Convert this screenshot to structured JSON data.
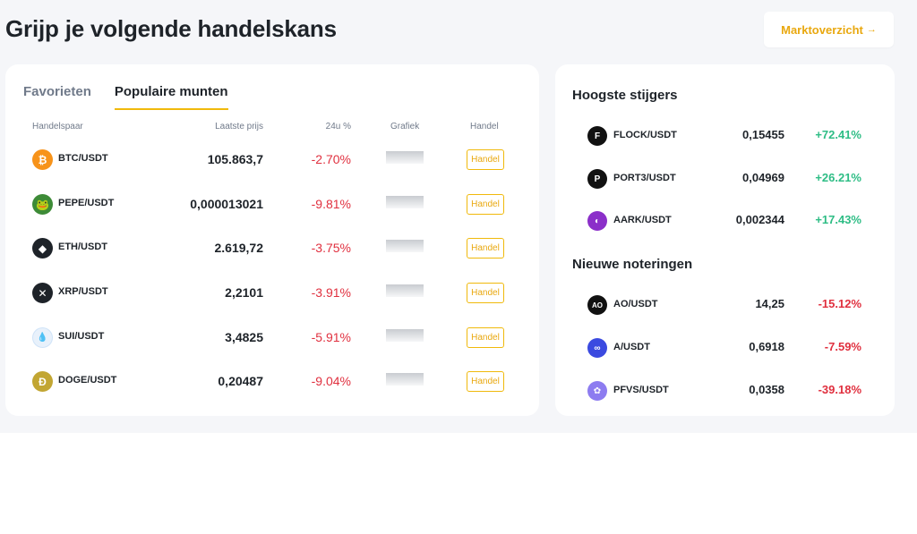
{
  "header": {
    "title": "Grijp je volgende handelskans",
    "market_button": "Marktoverzicht",
    "market_arrow": "→"
  },
  "tabs": [
    {
      "label": "Favorieten",
      "active": false
    },
    {
      "label": "Populaire munten",
      "active": true
    }
  ],
  "table": {
    "columns": {
      "pair": "Handelspaar",
      "price": "Laatste prijs",
      "change": "24u %",
      "chart": "Grafiek",
      "trade": "Handel"
    },
    "rows": [
      {
        "icon": "bitcoin-icon",
        "glyph": "₿",
        "color": "#f7931a",
        "pair": "BTC/USDT",
        "price": "105.863,7",
        "change": "-2.70%",
        "trade": "Handel"
      },
      {
        "icon": "pepe-icon",
        "glyph": "🐸",
        "color": "#3d8b37",
        "pair": "PEPE/USDT",
        "price": "0,000013021",
        "change": "-9.81%",
        "trade": "Handel"
      },
      {
        "icon": "ethereum-icon",
        "glyph": "◆",
        "color": "#1e2329",
        "pair": "ETH/USDT",
        "price": "2.619,72",
        "change": "-3.75%",
        "trade": "Handel"
      },
      {
        "icon": "xrp-icon",
        "glyph": "✕",
        "color": "#1e2329",
        "pair": "XRP/USDT",
        "price": "2,2101",
        "change": "-3.91%",
        "trade": "Handel"
      },
      {
        "icon": "sui-icon",
        "glyph": "💧",
        "color": "#e8f1fb",
        "pair": "SUI/USDT",
        "price": "3,4825",
        "change": "-5.91%",
        "trade": "Handel"
      },
      {
        "icon": "dogecoin-icon",
        "glyph": "Ð",
        "color": "#c2a633",
        "pair": "DOGE/USDT",
        "price": "0,20487",
        "change": "-9.04%",
        "trade": "Handel"
      }
    ]
  },
  "gainers": {
    "title": "Hoogste stijgers",
    "rows": [
      {
        "icon": "flock-icon",
        "glyph": "F",
        "color": "#111111",
        "pair": "FLOCK/USDT",
        "price": "0,15455",
        "change": "+72.41%",
        "dir": "up"
      },
      {
        "icon": "port3-icon",
        "glyph": "P",
        "color": "#111111",
        "pair": "PORT3/USDT",
        "price": "0,04969",
        "change": "+26.21%",
        "dir": "up"
      },
      {
        "icon": "aark-icon",
        "glyph": "◐",
        "color": "#8b2fc9",
        "pair": "AARK/USDT",
        "price": "0,002344",
        "change": "+17.43%",
        "dir": "up"
      }
    ]
  },
  "listings": {
    "title": "Nieuwe noteringen",
    "rows": [
      {
        "icon": "ao-icon",
        "glyph": "AO",
        "color": "#111111",
        "pair": "AO/USDT",
        "price": "14,25",
        "change": "-15.12%",
        "dir": "down"
      },
      {
        "icon": "a-icon",
        "glyph": "∞",
        "color": "#3b4ae0",
        "pair": "A/USDT",
        "price": "0,6918",
        "change": "-7.59%",
        "dir": "down"
      },
      {
        "icon": "pfvs-icon",
        "glyph": "✿",
        "color": "#8d7cf0",
        "pair": "PFVS/USDT",
        "price": "0,0358",
        "change": "-39.18%",
        "dir": "down"
      }
    ]
  },
  "colors": {
    "accent": "#f0b90b",
    "up": "#2ebd85",
    "down": "#e0303f",
    "background": "#f5f6f9"
  }
}
